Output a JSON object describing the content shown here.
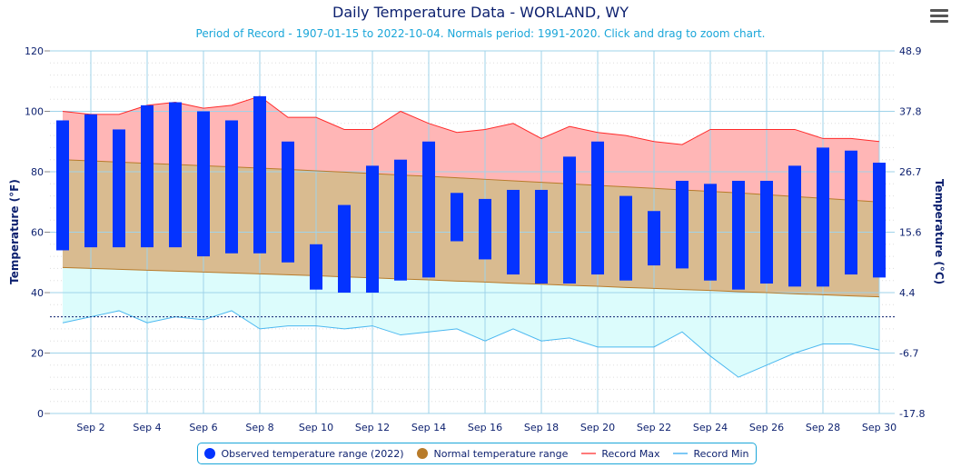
{
  "title": "Daily Temperature Data - WORLAND, WY",
  "subtitle": "Period of Record - 1907-01-15 to 2022-10-04. Normals period: 1991-2020. Click and drag to zoom chart.",
  "menu_icon": "hamburger-menu-icon",
  "colors": {
    "observed": "#0433ff",
    "normal": "#b87b2a",
    "normal_fill": "#d9bb90",
    "record_max": "#ff2a2a",
    "record_max_fill": "#ffb6b6",
    "record_min": "#4bb8f0",
    "record_min_fill": "#dcfcfc"
  },
  "legend": [
    {
      "label": "Observed temperature range (2022)"
    },
    {
      "label": "Normal temperature range"
    },
    {
      "label": "Record Max"
    },
    {
      "label": "Record Min"
    }
  ],
  "chart_data": {
    "type": "bar",
    "title": "Daily Temperature Data - WORLAND, WY",
    "ylabel": "Temperature (°F)",
    "y2label": "Temperature (°C)",
    "ylim": [
      0,
      120
    ],
    "yticks": [
      "0",
      "20",
      "40",
      "60",
      "80",
      "100",
      "120"
    ],
    "y2ticks": [
      "-17.8",
      "-6.7",
      "4.4",
      "15.6",
      "26.7",
      "37.8",
      "48.9"
    ],
    "xticks": [
      "Sep 2",
      "Sep 4",
      "Sep 6",
      "Sep 8",
      "Sep 10",
      "Sep 12",
      "Sep 14",
      "Sep 16",
      "Sep 18",
      "Sep 20",
      "Sep 22",
      "Sep 24",
      "Sep 26",
      "Sep 28",
      "Sep 30"
    ],
    "days": [
      1,
      2,
      3,
      4,
      5,
      6,
      7,
      8,
      9,
      10,
      11,
      12,
      13,
      14,
      15,
      16,
      17,
      18,
      19,
      20,
      21,
      22,
      23,
      24,
      25,
      26,
      27,
      28,
      29,
      30
    ],
    "freezing_line": 32,
    "series": [
      {
        "name": "Observed temperature range (2022)",
        "low": [
          54,
          55,
          55,
          55,
          55,
          52,
          53,
          53,
          50,
          41,
          40,
          40,
          44,
          45,
          57,
          51,
          46,
          43,
          43,
          46,
          44,
          49,
          48,
          44,
          41,
          43,
          42,
          42,
          46,
          45
        ],
        "high": [
          97,
          99,
          94,
          102,
          103,
          100,
          97,
          105,
          90,
          56,
          69,
          82,
          84,
          90,
          73,
          71,
          74,
          74,
          85,
          90,
          72,
          67,
          77,
          76,
          77,
          77,
          82,
          88,
          87,
          83
        ]
      },
      {
        "name": "Normal temperature range",
        "low": [
          48.3,
          48.0,
          47.7,
          47.4,
          47.1,
          46.8,
          46.5,
          46.2,
          45.9,
          45.6,
          45.2,
          44.9,
          44.5,
          44.2,
          43.8,
          43.5,
          43.1,
          42.8,
          42.4,
          42.1,
          41.7,
          41.4,
          41.0,
          40.7,
          40.3,
          40.0,
          39.6,
          39.3,
          38.9,
          38.6
        ],
        "high": [
          84.0,
          83.6,
          83.2,
          82.8,
          82.4,
          82.0,
          81.6,
          81.2,
          80.8,
          80.3,
          79.9,
          79.4,
          78.9,
          78.5,
          78.0,
          77.5,
          77.0,
          76.5,
          76.0,
          75.5,
          75.0,
          74.5,
          74.0,
          73.5,
          73.0,
          72.4,
          71.8,
          71.2,
          70.6,
          70.0
        ]
      },
      {
        "name": "Record Max",
        "values": [
          100,
          99,
          99,
          102,
          103,
          101,
          102,
          105,
          98,
          98,
          94,
          94,
          100,
          96,
          93,
          94,
          96,
          91,
          95,
          93,
          92,
          90,
          89,
          94,
          94,
          94,
          94,
          91,
          91,
          90
        ]
      },
      {
        "name": "Record Min",
        "values": [
          30,
          32,
          34,
          30,
          32,
          31,
          34,
          28,
          29,
          29,
          28,
          29,
          26,
          27,
          28,
          24,
          28,
          24,
          25,
          22,
          22,
          22,
          27,
          19,
          12,
          16,
          20,
          23,
          23,
          21
        ]
      }
    ]
  }
}
